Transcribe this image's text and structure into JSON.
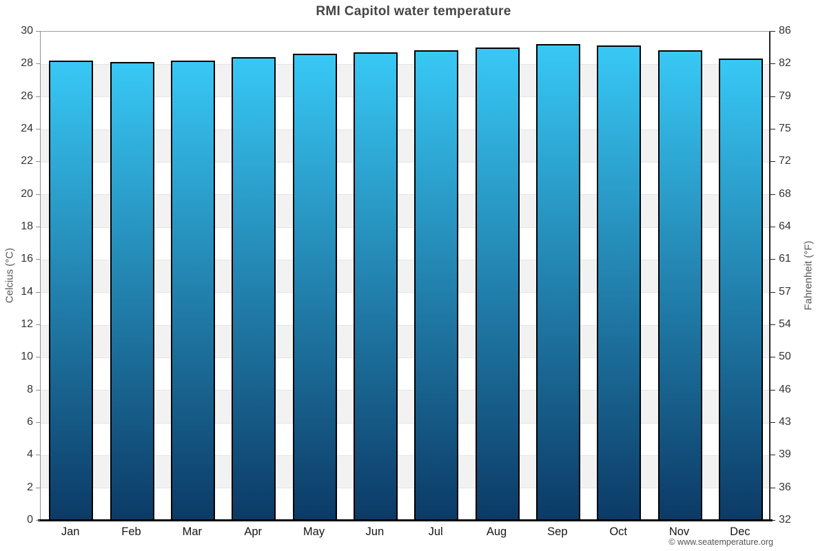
{
  "title": "RMI Capitol water temperature",
  "copyright": "© www.seatemperature.org",
  "axes": {
    "left_label": "Celcius (°C)",
    "right_label": "Fahrenheit (°F)",
    "left_ticks": [
      "30",
      "28",
      "26",
      "24",
      "22",
      "20",
      "18",
      "16",
      "14",
      "12",
      "10",
      "8",
      "6",
      "4",
      "2",
      "0"
    ],
    "right_ticks": [
      "86",
      "82",
      "79",
      "75",
      "72",
      "68",
      "64",
      "61",
      "57",
      "54",
      "50",
      "46",
      "43",
      "39",
      "36",
      "32"
    ]
  },
  "chart_data": {
    "type": "bar",
    "title": "RMI Capitol water temperature",
    "categories": [
      "Jan",
      "Feb",
      "Mar",
      "Apr",
      "May",
      "Jun",
      "Jul",
      "Aug",
      "Sep",
      "Oct",
      "Nov",
      "Dec"
    ],
    "values": [
      28.2,
      28.1,
      28.2,
      28.4,
      28.6,
      28.7,
      28.8,
      29.0,
      29.2,
      29.1,
      28.8,
      28.3
    ],
    "unit": "°C",
    "xlabel": "",
    "ylabel": "Celcius (°C)",
    "ylabel_secondary": "Fahrenheit (°F)",
    "ylim": [
      0,
      30
    ],
    "y_tick_step": 2,
    "secondary_tick_labels_F": [
      86,
      82,
      79,
      75,
      72,
      68,
      64,
      61,
      57,
      54,
      50,
      46,
      43,
      39,
      36,
      32
    ],
    "grid": "alternating horizontal bands every 2°C",
    "legend": "none"
  },
  "colors": {
    "bar_gradient_top": "#38c8f5",
    "bar_gradient_bottom": "#0c3a66",
    "bar_border": "#000000",
    "band_gray": "#f2f2f2",
    "gridline": "#e4e4e4",
    "title_text": "#454545",
    "tick_text": "#333333",
    "bottom_axis": "#000000"
  }
}
